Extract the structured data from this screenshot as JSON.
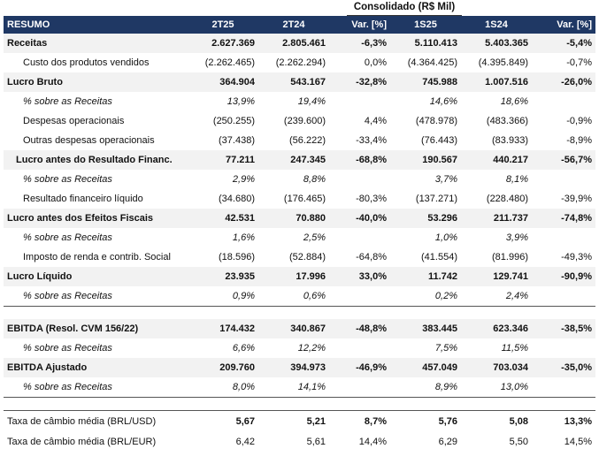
{
  "header_group": "Consolidado (R$ Mil)",
  "columns": [
    "RESUMO",
    "2T25",
    "2T24",
    "Var. [%]",
    "1S25",
    "1S24",
    "Var. [%]"
  ],
  "rows": [
    {
      "style": "bold",
      "cells": [
        "Receitas",
        "2.627.369",
        "2.805.461",
        "-6,3%",
        "5.110.413",
        "5.403.365",
        "-5,4%"
      ]
    },
    {
      "style": "indent",
      "cells": [
        "Custo dos produtos vendidos",
        "(2.262.465)",
        "(2.262.294)",
        "0,0%",
        "(4.364.425)",
        "(4.395.849)",
        "-0,7%"
      ]
    },
    {
      "style": "bold",
      "cells": [
        "Lucro Bruto",
        "364.904",
        "543.167",
        "-32,8%",
        "745.988",
        "1.007.516",
        "-26,0%"
      ]
    },
    {
      "style": "pct",
      "cells": [
        "% sobre as Receitas",
        "13,9%",
        "19,4%",
        "",
        "14,6%",
        "18,6%",
        ""
      ]
    },
    {
      "style": "indent",
      "cells": [
        "Despesas operacionais",
        "(250.255)",
        "(239.600)",
        "4,4%",
        "(478.978)",
        "(483.366)",
        "-0,9%"
      ]
    },
    {
      "style": "indent",
      "cells": [
        "Outras despesas operacionais",
        "(37.438)",
        "(56.222)",
        "-33,4%",
        "(76.443)",
        "(83.933)",
        "-8,9%"
      ]
    },
    {
      "style": "bold indent",
      "cells": [
        "Lucro antes do Resultado Financ.",
        "77.211",
        "247.345",
        "-68,8%",
        "190.567",
        "440.217",
        "-56,7%"
      ]
    },
    {
      "style": "pct",
      "cells": [
        "% sobre as Receitas",
        "2,9%",
        "8,8%",
        "",
        "3,7%",
        "8,1%",
        ""
      ]
    },
    {
      "style": "indent",
      "cells": [
        "Resultado financeiro líquido",
        "(34.680)",
        "(176.465)",
        "-80,3%",
        "(137.271)",
        "(228.480)",
        "-39,9%"
      ]
    },
    {
      "style": "bold",
      "cells": [
        "Lucro antes dos Efeitos Fiscais",
        "42.531",
        "70.880",
        "-40,0%",
        "53.296",
        "211.737",
        "-74,8%"
      ]
    },
    {
      "style": "pct",
      "cells": [
        "% sobre as Receitas",
        "1,6%",
        "2,5%",
        "",
        "1,0%",
        "3,9%",
        ""
      ]
    },
    {
      "style": "indent",
      "cells": [
        "Imposto de renda e contrib. Social",
        "(18.596)",
        "(52.884)",
        "-64,8%",
        "(41.554)",
        "(81.996)",
        "-49,3%"
      ]
    },
    {
      "style": "bold",
      "cells": [
        "Lucro Líquido",
        "23.935",
        "17.996",
        "33,0%",
        "11.742",
        "129.741",
        "-90,9%"
      ]
    },
    {
      "style": "pct sep-bottom",
      "cells": [
        "% sobre as Receitas",
        "0,9%",
        "0,6%",
        "",
        "0,2%",
        "2,4%",
        ""
      ]
    },
    {
      "style": "spacer",
      "cells": [
        "",
        "",
        "",
        "",
        "",
        "",
        ""
      ]
    },
    {
      "style": "bold",
      "cells": [
        "EBITDA (Resol. CVM 156/22)",
        "174.432",
        "340.867",
        "-48,8%",
        "383.445",
        "623.346",
        "-38,5%"
      ]
    },
    {
      "style": "pct",
      "cells": [
        "% sobre as Receitas",
        "6,6%",
        "12,2%",
        "",
        "7,5%",
        "11,5%",
        ""
      ]
    },
    {
      "style": "bold",
      "cells": [
        "EBITDA Ajustado",
        "209.760",
        "394.973",
        "-46,9%",
        "457.049",
        "703.034",
        "-35,0%"
      ]
    },
    {
      "style": "pct sep-bottom",
      "cells": [
        "% sobre as Receitas",
        "8,0%",
        "14,1%",
        "",
        "8,9%",
        "13,0%",
        ""
      ]
    },
    {
      "style": "spacer-thick",
      "cells": [
        "",
        "",
        "",
        "",
        "",
        "",
        ""
      ]
    },
    {
      "style": "fx",
      "cells": [
        "Taxa de câmbio média (BRL/USD)",
        "5,67",
        "5,21",
        "8,7%",
        "5,76",
        "5,08",
        "13,3%"
      ]
    },
    {
      "style": "fx2",
      "cells": [
        "Taxa de câmbio média (BRL/EUR)",
        "6,42",
        "5,61",
        "14,4%",
        "6,29",
        "5,50",
        "14,5%"
      ]
    }
  ]
}
